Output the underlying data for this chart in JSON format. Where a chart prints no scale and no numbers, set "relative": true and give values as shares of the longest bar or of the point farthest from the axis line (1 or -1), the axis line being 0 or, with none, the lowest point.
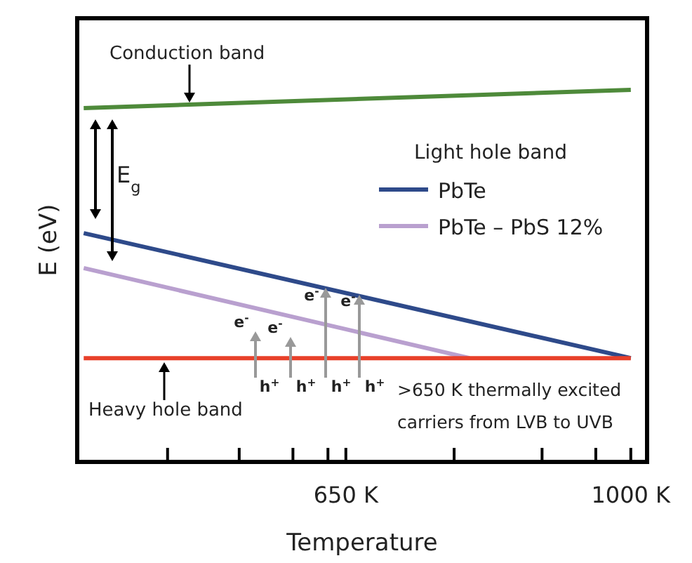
{
  "chart_data": {
    "type": "line",
    "xlabel": "Temperature",
    "ylabel": "E (eV)",
    "relative": true,
    "legend_title": "Light hole band",
    "legend": "right",
    "grid": false,
    "marker": "none",
    "line_style": "solid",
    "xlim": [
      320,
      1020
    ],
    "xticks": [
      {
        "value": 431,
        "label": null
      },
      {
        "value": 519,
        "label": null
      },
      {
        "value": 585,
        "label": null
      },
      {
        "value": 628,
        "label": null
      },
      {
        "value": 650,
        "label": "650 K"
      },
      {
        "value": 783,
        "label": null
      },
      {
        "value": 891,
        "label": null
      },
      {
        "value": 957,
        "label": null
      },
      {
        "value": 1000,
        "label": "1000 K"
      }
    ],
    "series": [
      {
        "color": "#4e8a3a",
        "x": [
          328,
          1000
        ],
        "values": [
          0.951,
          1
        ]
      },
      {
        "name": "PbTe",
        "color": "#2e4a8a",
        "x": [
          328,
          1000
        ],
        "values": [
          0.615,
          0.279
        ]
      },
      {
        "name": "PbTe – PbS 12%",
        "color": "#b9a0cf",
        "x": [
          328,
          802
        ],
        "values": [
          0.521,
          0.279
        ]
      },
      {
        "color": "#e8402a",
        "x": [
          328,
          1000
        ],
        "values": [
          0.279,
          0.279
        ]
      }
    ],
    "annotations": [
      "Conduction band",
      "E$_{g}$",
      "Heavy hole band",
      ">650 K thermally excited carriers from LVB to UVB",
      "e$^{-}$",
      "e$^{-}$",
      "e$^{-}$",
      "e$^{-}$",
      "h$^{+}$",
      "h$^{+}$",
      "h$^{+}$",
      "h$^{+}$"
    ]
  }
}
